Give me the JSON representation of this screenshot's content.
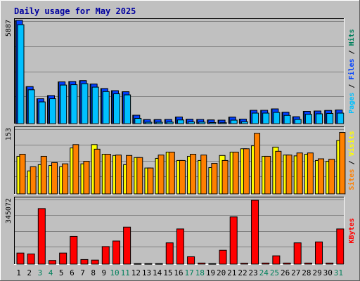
{
  "title": "Daily usage for May 2025",
  "colors": {
    "background": "#c0c0c0",
    "plot_border": "#000000",
    "grid": "#808080",
    "title": "#0000a0",
    "hits": "#00805c",
    "files": "#0040ff",
    "pages": "#00c0ff",
    "visits": "#ffff00",
    "sites": "#ff8000",
    "kbytes": "#ff0000",
    "weekday_label": "#000000",
    "weekend_label": "#00805c"
  },
  "right_labels": {
    "hits": "Hits",
    "files": "Files",
    "pages": "Pages",
    "visits": "Visits",
    "sites": "Sites",
    "kbytes": "KBytes",
    "separator": " / "
  },
  "chart_data": [
    {
      "type": "bar",
      "panel": "hits-files-pages",
      "y_max_label": "5887",
      "ylim": [
        0,
        5887
      ],
      "grid": true,
      "categories": [
        "1",
        "2",
        "3",
        "4",
        "5",
        "6",
        "7",
        "8",
        "9",
        "10",
        "11",
        "12",
        "13",
        "14",
        "15",
        "16",
        "17",
        "18",
        "19",
        "20",
        "21",
        "22",
        "23",
        "24",
        "25",
        "26",
        "27",
        "28",
        "29",
        "30",
        "31"
      ],
      "weekend_days": [
        "3",
        "4",
        "10",
        "11",
        "17",
        "18",
        "24",
        "25",
        "31"
      ],
      "series": [
        {
          "name": "Hits",
          "values": [
            5887,
            2110,
            1420,
            1600,
            2380,
            2400,
            2450,
            2260,
            2000,
            1880,
            1820,
            480,
            230,
            230,
            240,
            380,
            250,
            240,
            210,
            200,
            370,
            260,
            760,
            760,
            840,
            650,
            390,
            700,
            720,
            750,
            780
          ]
        },
        {
          "name": "Files",
          "values": [
            5887,
            2110,
            1420,
            1600,
            2380,
            2400,
            2450,
            2260,
            2000,
            1880,
            1820,
            480,
            230,
            230,
            240,
            380,
            250,
            240,
            210,
            200,
            370,
            260,
            760,
            760,
            840,
            650,
            390,
            700,
            720,
            750,
            780
          ]
        },
        {
          "name": "Pages",
          "values": [
            5760,
            2050,
            1360,
            1540,
            2320,
            2340,
            2400,
            2200,
            1950,
            1820,
            1760,
            420,
            200,
            200,
            210,
            330,
            220,
            210,
            180,
            170,
            320,
            230,
            720,
            720,
            760,
            590,
            360,
            650,
            680,
            700,
            720
          ]
        }
      ]
    },
    {
      "type": "bar",
      "panel": "visits-sites",
      "y_max_label": "153",
      "ylim": [
        0,
        153
      ],
      "grid": true,
      "categories": [
        "1",
        "2",
        "3",
        "4",
        "5",
        "6",
        "7",
        "8",
        "9",
        "10",
        "11",
        "12",
        "13",
        "14",
        "15",
        "16",
        "17",
        "18",
        "19",
        "20",
        "21",
        "22",
        "23",
        "24",
        "25",
        "26",
        "27",
        "28",
        "29",
        "30",
        "31"
      ],
      "series": [
        {
          "name": "Visits",
          "values": [
            90,
            55,
            70,
            68,
            65,
            110,
            72,
            118,
            95,
            92,
            70,
            87,
            62,
            85,
            100,
            80,
            90,
            80,
            63,
            92,
            100,
            108,
            115,
            90,
            112,
            93,
            91,
            95,
            80,
            78,
            128
          ]
        },
        {
          "name": "Sites",
          "values": [
            95,
            65,
            90,
            75,
            72,
            118,
            78,
            107,
            95,
            93,
            92,
            87,
            62,
            93,
            100,
            80,
            95,
            93,
            73,
            80,
            100,
            108,
            145,
            90,
            102,
            93,
            98,
            98,
            84,
            83,
            147
          ]
        }
      ]
    },
    {
      "type": "bar",
      "panel": "kbytes",
      "y_max_label": "345072",
      "ylim": [
        0,
        345072
      ],
      "grid": true,
      "categories": [
        "1",
        "2",
        "3",
        "4",
        "5",
        "6",
        "7",
        "8",
        "9",
        "10",
        "11",
        "12",
        "13",
        "14",
        "15",
        "16",
        "17",
        "18",
        "19",
        "20",
        "21",
        "22",
        "23",
        "24",
        "25",
        "26",
        "27",
        "28",
        "29",
        "30",
        "31"
      ],
      "series": [
        {
          "name": "KBytes",
          "values": [
            60000,
            55000,
            300000,
            20000,
            60000,
            150000,
            25000,
            22000,
            95000,
            125000,
            200000,
            3000,
            3000,
            3000,
            115000,
            190000,
            40000,
            6000,
            3000,
            75000,
            255000,
            5000,
            345072,
            6000,
            45000,
            6000,
            115000,
            6000,
            120000,
            6000,
            190000
          ]
        }
      ]
    }
  ]
}
